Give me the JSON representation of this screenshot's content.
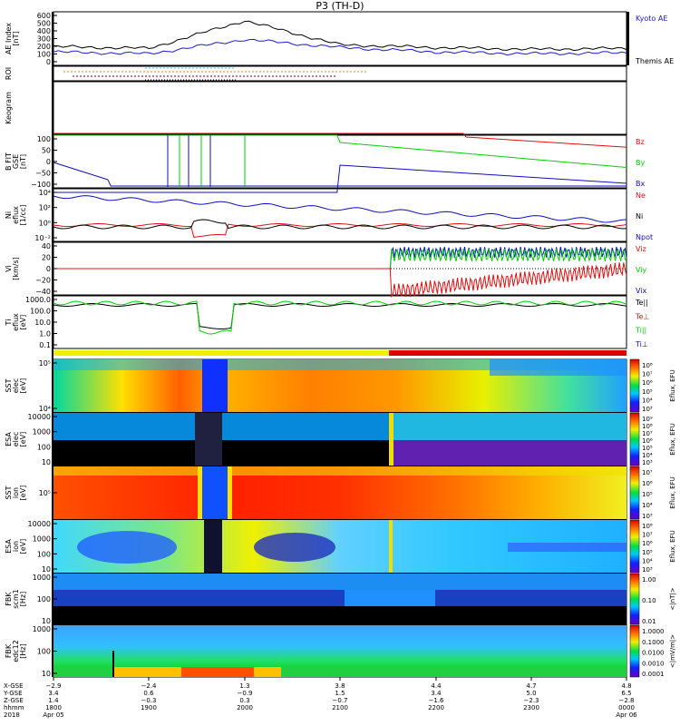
{
  "title": "P3 (TH-D)",
  "colors": {
    "kyoto": "#1a1ad0",
    "themis": "#000000",
    "red": "#e01010",
    "green": "#00d000",
    "blue": "#1010c0",
    "black": "#000000"
  },
  "panels": [
    {
      "id": "ae",
      "ylabel": [
        "AE Index",
        "[nT]"
      ],
      "ticks": [
        "600",
        "500",
        "400",
        "300",
        "200",
        "100",
        "0"
      ],
      "legend": [
        "Kyoto AE",
        "Themis AE"
      ]
    },
    {
      "id": "roi",
      "ylabel": [
        "ROI"
      ],
      "ticks": [],
      "legend": []
    },
    {
      "id": "keogram",
      "ylabel": [
        "Keogram"
      ],
      "ticks": [],
      "legend": []
    },
    {
      "id": "bfit",
      "ylabel": [
        "B FIT",
        "GSE",
        "[nT]"
      ],
      "ticks": [
        "100",
        "50",
        "0",
        "−50",
        "−100"
      ],
      "legend": [
        "Bz",
        "By",
        "Bx"
      ]
    },
    {
      "id": "ni",
      "ylabel": [
        "Ni",
        "eflux",
        "[1/cc]"
      ],
      "ticks": [
        "10⁴",
        "10²",
        "10⁰",
        "10⁻²"
      ],
      "legend": [
        "Ne",
        "Ni",
        "Npot"
      ]
    },
    {
      "id": "vi",
      "ylabel": [
        "Vi",
        "[km/s]"
      ],
      "ticks": [
        "40",
        "20",
        "0",
        "−20",
        "−40"
      ],
      "legend": [
        "Viz",
        "Viy",
        "Vix"
      ]
    },
    {
      "id": "t",
      "ylabel": [
        "Ti",
        "eflux",
        "[eV]"
      ],
      "ticks": [
        "1000.0",
        "100.0",
        "10.0",
        "1.0",
        "0.1"
      ],
      "legend": [
        "Te||",
        "Te⊥",
        "Ti||",
        "Ti⊥"
      ]
    },
    {
      "id": "sste",
      "ylabel": [
        "SST",
        "elec",
        "[eV]"
      ],
      "ticks": [
        "10⁵",
        "10⁴"
      ],
      "cbar": [
        "10⁸",
        "10⁷",
        "10⁶",
        "10⁵",
        "10⁴",
        "10³"
      ],
      "cbar_label": "Eflux, EFU"
    },
    {
      "id": "esae",
      "ylabel": [
        "ESA",
        "elec",
        "[eV]"
      ],
      "ticks": [
        "10000",
        "1000",
        "100",
        "10"
      ],
      "cbar": [
        "10⁹",
        "10⁸",
        "10⁷",
        "10⁶",
        "10⁵",
        "10⁴",
        "10³"
      ],
      "cbar_label": "Eflux, EFU"
    },
    {
      "id": "ssti",
      "ylabel": [
        "SST",
        "ion",
        "[eV]"
      ],
      "ticks": [
        "10⁵"
      ],
      "cbar": [
        "10⁷",
        "10⁶",
        "10⁵",
        "10⁴",
        "10³"
      ],
      "cbar_label": "Eflux, EFU"
    },
    {
      "id": "esai",
      "ylabel": [
        "ESA",
        "ion",
        "[eV]"
      ],
      "ticks": [
        "10000",
        "1000",
        "100",
        "10"
      ],
      "cbar": [
        "10⁸",
        "10⁷",
        "10⁶",
        "10⁵",
        "10⁴",
        "10³"
      ],
      "cbar_label": "Eflux, EFU"
    },
    {
      "id": "fbkb",
      "ylabel": [
        "FBK",
        "scm1",
        "[Hz]"
      ],
      "ticks": [
        "1000",
        "100",
        "10"
      ],
      "cbar": [
        "1.00",
        "0.10",
        "0.01"
      ],
      "cbar_label": "<|nT|>"
    },
    {
      "id": "fbke",
      "ylabel": [
        "FBK",
        "edc12",
        "[Hz]"
      ],
      "ticks": [
        "1000",
        "100",
        "10"
      ],
      "cbar": [
        "1.0000",
        "0.1000",
        "0.0100",
        "0.0010",
        "0.0001"
      ],
      "cbar_label": "<|mV/m|>"
    }
  ],
  "footer": {
    "row_labels": [
      "X-GSE",
      "Y-GSE",
      "Z-GSE",
      "hhmm",
      "2018"
    ],
    "columns": [
      [
        "−2.9",
        "3.4",
        "1.4",
        "1800",
        "Apr 05"
      ],
      [
        "−2.4",
        "0.6",
        "−0.3",
        "1900",
        ""
      ],
      [
        "1.3",
        "−0.9",
        "0.3",
        "2000",
        ""
      ],
      [
        "3.8",
        "1.5",
        "−0.7",
        "2100",
        ""
      ],
      [
        "4.4",
        "3.4",
        "−1.6",
        "2200",
        ""
      ],
      [
        "4.7",
        "5.0",
        "−2.3",
        "2300",
        ""
      ],
      [
        "4.8",
        "6.5",
        "−2.8",
        "0000",
        "Apr 06"
      ]
    ]
  },
  "chart_data": {
    "type": "line",
    "title": "P3 (TH-D)",
    "x": [
      "1800",
      "1900",
      "2000",
      "2100",
      "2200",
      "2300",
      "0000"
    ],
    "series": [
      {
        "name": "Kyoto AE",
        "values": [
          150,
          130,
          290,
          200,
          150,
          130,
          140
        ]
      },
      {
        "name": "Themis AE",
        "values": [
          210,
          190,
          500,
          230,
          200,
          180,
          190
        ]
      }
    ],
    "ylabel": "AE Index [nT]",
    "ylim": [
      0,
      600
    ]
  }
}
